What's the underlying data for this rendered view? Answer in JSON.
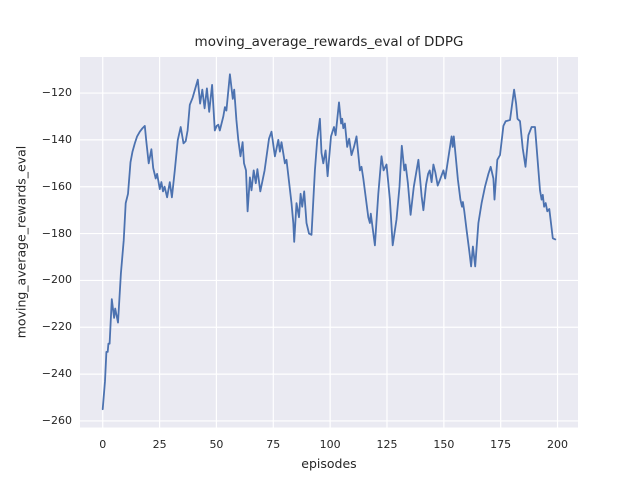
{
  "chart_data": {
    "type": "line",
    "title": "moving_average_rewards_eval of DDPG",
    "xlabel": "episodes",
    "ylabel": "moving_average_rewards_eval",
    "xlim": [
      -10,
      209
    ],
    "ylim": [
      -262.8,
      -104.6
    ],
    "x_ticks": [
      0,
      25,
      50,
      75,
      100,
      125,
      150,
      175,
      200
    ],
    "y_ticks": [
      -260,
      -240,
      -220,
      -200,
      -180,
      -160,
      -140,
      -120
    ],
    "grid": true,
    "legend": "none",
    "colors": {
      "line": "#4c72b0",
      "plot_background": "#eaeaf2",
      "gridline": "#ffffff",
      "figure_background": "#ffffff",
      "text": "#262626"
    },
    "series": [
      {
        "name": "moving_average_rewards_eval",
        "points": [
          [
            0,
            -255
          ],
          [
            1,
            -243
          ],
          [
            1.6,
            -230.5
          ],
          [
            2.2,
            -230.5
          ],
          [
            2.5,
            -227
          ],
          [
            3,
            -227
          ],
          [
            4,
            -208
          ],
          [
            5,
            -216
          ],
          [
            5.5,
            -212
          ],
          [
            6.7,
            -218
          ],
          [
            8,
            -197
          ],
          [
            9.2,
            -183
          ],
          [
            10.1,
            -167
          ],
          [
            11.1,
            -163
          ],
          [
            12.2,
            -149.5
          ],
          [
            13.1,
            -145
          ],
          [
            14.1,
            -141.5
          ],
          [
            15.1,
            -138.5
          ],
          [
            16.3,
            -136.5
          ],
          [
            17.5,
            -135
          ],
          [
            18.5,
            -134
          ],
          [
            19.2,
            -141
          ],
          [
            20.2,
            -150
          ],
          [
            21.4,
            -144
          ],
          [
            22.2,
            -152
          ],
          [
            23.3,
            -156.5
          ],
          [
            23.9,
            -154.5
          ],
          [
            25.1,
            -161
          ],
          [
            25.8,
            -158
          ],
          [
            26.5,
            -162
          ],
          [
            27.2,
            -160
          ],
          [
            28.3,
            -164.5
          ],
          [
            29.5,
            -158
          ],
          [
            30.4,
            -164.5
          ],
          [
            31.7,
            -153
          ],
          [
            33,
            -140
          ],
          [
            34.3,
            -134.5
          ],
          [
            35.5,
            -141.5
          ],
          [
            36.5,
            -140.5
          ],
          [
            37.3,
            -136
          ],
          [
            38.3,
            -125
          ],
          [
            39.5,
            -122
          ],
          [
            41.8,
            -114.3
          ],
          [
            42.8,
            -124.5
          ],
          [
            43.8,
            -118.5
          ],
          [
            44.8,
            -126.5
          ],
          [
            45.8,
            -118
          ],
          [
            46.8,
            -128
          ],
          [
            48.1,
            -116.5
          ],
          [
            49.3,
            -136
          ],
          [
            50.1,
            -134
          ],
          [
            50.8,
            -133.5
          ],
          [
            51.5,
            -136
          ],
          [
            53,
            -130
          ],
          [
            53.7,
            -126
          ],
          [
            54.4,
            -127.5
          ],
          [
            55.9,
            -112
          ],
          [
            57.2,
            -122.5
          ],
          [
            57.8,
            -118.5
          ],
          [
            58.8,
            -131.5
          ],
          [
            59.6,
            -140
          ],
          [
            60.6,
            -147
          ],
          [
            61.5,
            -141
          ],
          [
            62.1,
            -150
          ],
          [
            63,
            -153
          ],
          [
            63.7,
            -170.5
          ],
          [
            64.7,
            -156
          ],
          [
            65.4,
            -161.5
          ],
          [
            66.4,
            -153
          ],
          [
            67.3,
            -158.5
          ],
          [
            68,
            -152.5
          ],
          [
            69.3,
            -162
          ],
          [
            71.2,
            -153
          ],
          [
            73.1,
            -139.5
          ],
          [
            74.2,
            -136.5
          ],
          [
            75.7,
            -147
          ],
          [
            77.2,
            -140
          ],
          [
            77.9,
            -145
          ],
          [
            78.6,
            -141
          ],
          [
            80.1,
            -150
          ],
          [
            80.8,
            -148.5
          ],
          [
            83,
            -167
          ],
          [
            83.8,
            -175.5
          ],
          [
            84.2,
            -183.5
          ],
          [
            85.2,
            -167
          ],
          [
            86.3,
            -173
          ],
          [
            87,
            -163
          ],
          [
            87.7,
            -168.5
          ],
          [
            88.6,
            -162
          ],
          [
            89.6,
            -175.5
          ],
          [
            90.7,
            -180
          ],
          [
            91.8,
            -180.5
          ],
          [
            93.3,
            -153
          ],
          [
            94.3,
            -140
          ],
          [
            95.5,
            -131
          ],
          [
            96.2,
            -145.5
          ],
          [
            97,
            -150
          ],
          [
            98,
            -144.5
          ],
          [
            98.9,
            -155.5
          ],
          [
            100.4,
            -138.5
          ],
          [
            101.7,
            -134.5
          ],
          [
            102.4,
            -138
          ],
          [
            103.9,
            -124
          ],
          [
            104.8,
            -133
          ],
          [
            105.3,
            -131
          ],
          [
            105.8,
            -135
          ],
          [
            106.5,
            -133
          ],
          [
            107.5,
            -143
          ],
          [
            108.4,
            -139.5
          ],
          [
            109.4,
            -146.5
          ],
          [
            110.5,
            -143
          ],
          [
            111.6,
            -138.5
          ],
          [
            113.1,
            -153
          ],
          [
            113.8,
            -151.5
          ],
          [
            114.6,
            -156.5
          ],
          [
            116.8,
            -173
          ],
          [
            117.5,
            -175.5
          ],
          [
            117.9,
            -171.5
          ],
          [
            119.7,
            -185
          ],
          [
            121.2,
            -163
          ],
          [
            122.6,
            -147
          ],
          [
            123.5,
            -153
          ],
          [
            124.8,
            -150.5
          ],
          [
            126.3,
            -165.5
          ],
          [
            127.5,
            -185
          ],
          [
            129.2,
            -174
          ],
          [
            130.5,
            -160
          ],
          [
            131.5,
            -142.5
          ],
          [
            132.6,
            -153
          ],
          [
            133.2,
            -150.5
          ],
          [
            134.2,
            -158.5
          ],
          [
            135.4,
            -172
          ],
          [
            136.8,
            -160
          ],
          [
            138.8,
            -148.5
          ],
          [
            140.2,
            -164
          ],
          [
            141,
            -170
          ],
          [
            142.2,
            -159
          ],
          [
            143.1,
            -154.5
          ],
          [
            143.8,
            -153
          ],
          [
            144.6,
            -158
          ],
          [
            145.4,
            -150.5
          ],
          [
            146.3,
            -154
          ],
          [
            147.3,
            -159.5
          ],
          [
            148.3,
            -157
          ],
          [
            149.8,
            -153
          ],
          [
            150.6,
            -156.5
          ],
          [
            153,
            -141
          ],
          [
            153.4,
            -138.5
          ],
          [
            153.9,
            -143
          ],
          [
            154.4,
            -138.5
          ],
          [
            155.2,
            -147
          ],
          [
            156.2,
            -157
          ],
          [
            157.3,
            -165.5
          ],
          [
            158,
            -168.5
          ],
          [
            158.4,
            -166.5
          ],
          [
            159,
            -170.5
          ],
          [
            160,
            -178.5
          ],
          [
            161.2,
            -187.5
          ],
          [
            162,
            -194
          ],
          [
            162.8,
            -185.5
          ],
          [
            163.8,
            -194
          ],
          [
            165.2,
            -175.5
          ],
          [
            166.6,
            -167
          ],
          [
            168.1,
            -160
          ],
          [
            169.6,
            -154.5
          ],
          [
            170.6,
            -151.5
          ],
          [
            171.8,
            -156.5
          ],
          [
            172.3,
            -165.5
          ],
          [
            173.5,
            -148.5
          ],
          [
            174.7,
            -146.5
          ],
          [
            176.2,
            -134
          ],
          [
            177.2,
            -132
          ],
          [
            179.1,
            -131.5
          ],
          [
            180.9,
            -118.5
          ],
          [
            181.8,
            -124.5
          ],
          [
            182.4,
            -131
          ],
          [
            183.5,
            -132
          ],
          [
            184.7,
            -143.5
          ],
          [
            185.9,
            -151.5
          ],
          [
            187.2,
            -138
          ],
          [
            188.6,
            -134.5
          ],
          [
            190.1,
            -134.5
          ],
          [
            192.3,
            -161.5
          ],
          [
            193,
            -165.5
          ],
          [
            193.5,
            -163.5
          ],
          [
            194.1,
            -168.5
          ],
          [
            194.8,
            -167
          ],
          [
            195.5,
            -170.5
          ],
          [
            196.4,
            -169.5
          ],
          [
            197.9,
            -182
          ],
          [
            199,
            -182.5
          ]
        ]
      }
    ]
  }
}
